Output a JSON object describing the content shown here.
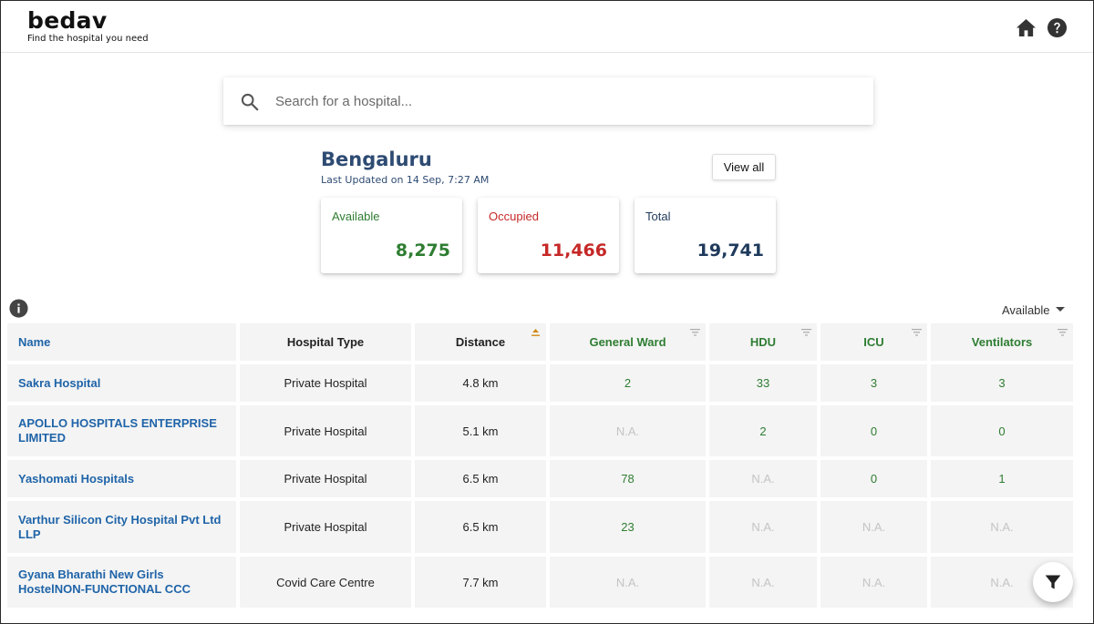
{
  "header": {
    "logo": "bedav",
    "tagline": "Find the hospital you need",
    "home_icon": "home-icon",
    "help_icon": "help-icon"
  },
  "search": {
    "placeholder": "Search for a hospital...",
    "value": "",
    "icon": "search-icon"
  },
  "city": {
    "name": "Bengaluru",
    "last_updated": "Last Updated on 14 Sep, 7:27 AM",
    "view_all_label": "View all"
  },
  "stats": {
    "available": {
      "label": "Available",
      "value": "8,275",
      "color": "#2e7d32"
    },
    "occupied": {
      "label": "Occupied",
      "value": "11,466",
      "color": "#c62828"
    },
    "total": {
      "label": "Total",
      "value": "19,741",
      "color": "#1f3a5c"
    }
  },
  "sort_select": {
    "selected": "Available"
  },
  "table": {
    "columns": [
      "Name",
      "Hospital Type",
      "Distance",
      "General Ward",
      "HDU",
      "ICU",
      "Ventilators"
    ],
    "rows": [
      [
        "Sakra Hospital",
        "Private Hospital",
        "4.8 km",
        "2",
        "33",
        "3",
        "3"
      ],
      [
        "APOLLO HOSPITALS ENTERPRISE LIMITED",
        "Private Hospital",
        "5.1 km",
        "N.A.",
        "2",
        "0",
        "0"
      ],
      [
        "Yashomati Hospitals",
        "Private Hospital",
        "6.5 km",
        "78",
        "N.A.",
        "0",
        "1"
      ],
      [
        "Varthur Silicon City Hospital Pvt Ltd LLP",
        "Private Hospital",
        "6.5 km",
        "23",
        "N.A.",
        "N.A.",
        "N.A."
      ],
      [
        "Gyana Bharathi New Girls HostelNON-FUNCTIONAL CCC",
        "Covid Care Centre",
        "7.7 km",
        "N.A.",
        "N.A.",
        "N.A.",
        "N.A."
      ]
    ]
  },
  "fab": {
    "icon": "filter-icon"
  }
}
